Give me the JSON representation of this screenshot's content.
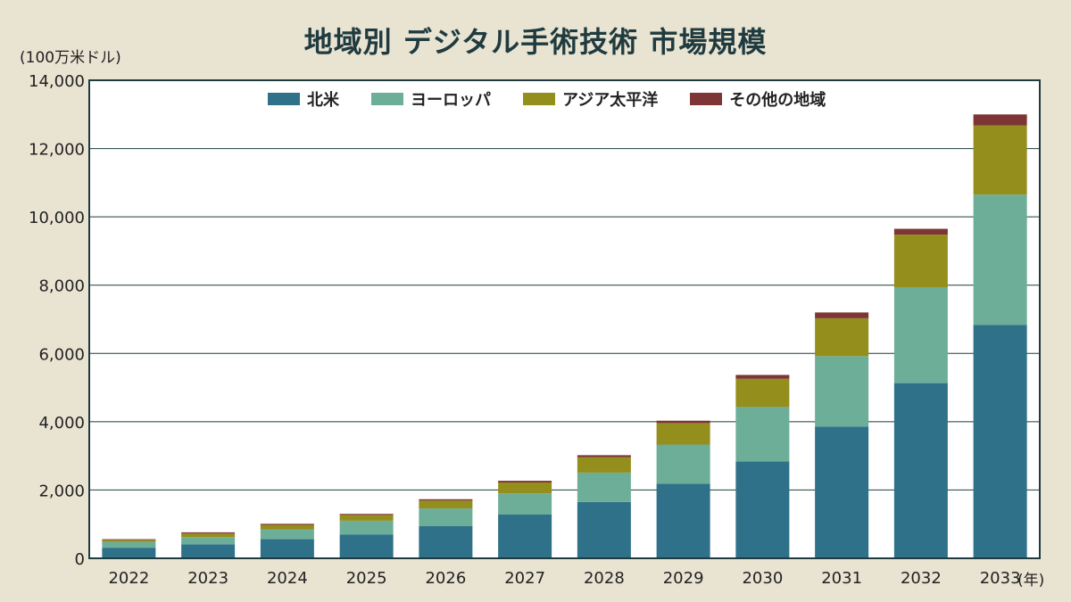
{
  "chart_data": {
    "type": "bar",
    "stacked": true,
    "title": "地域別 デジタル手術技術 市場規模",
    "unit_label": "(100万米ドル)",
    "x_unit_label": "(年)",
    "categories": [
      "2022",
      "2023",
      "2024",
      "2025",
      "2026",
      "2027",
      "2028",
      "2029",
      "2030",
      "2031",
      "2032",
      "2033"
    ],
    "y_ticks": [
      "0",
      "2,000",
      "4,000",
      "6,000",
      "8,000",
      "10,000",
      "12,000",
      "14,000"
    ],
    "ylim": [
      0,
      14000
    ],
    "grid": true,
    "legend_position": "top",
    "series": [
      {
        "name": "北米",
        "color": "#2e7189",
        "values": [
          310,
          410,
          560,
          700,
          940,
          1280,
          1650,
          2180,
          2840,
          3860,
          5130,
          6830
        ]
      },
      {
        "name": "ヨーロッパ",
        "color": "#6dae99",
        "values": [
          170,
          210,
          280,
          400,
          520,
          620,
          860,
          1150,
          1590,
          2060,
          2800,
          3820
        ]
      },
      {
        "name": "アジア太平洋",
        "color": "#948e1d",
        "values": [
          60,
          110,
          140,
          170,
          230,
          320,
          450,
          630,
          830,
          1110,
          1550,
          2030
        ]
      },
      {
        "name": "その他の地域",
        "color": "#7d3535",
        "values": [
          20,
          30,
          30,
          30,
          40,
          50,
          60,
          70,
          110,
          170,
          170,
          320
        ]
      }
    ]
  }
}
